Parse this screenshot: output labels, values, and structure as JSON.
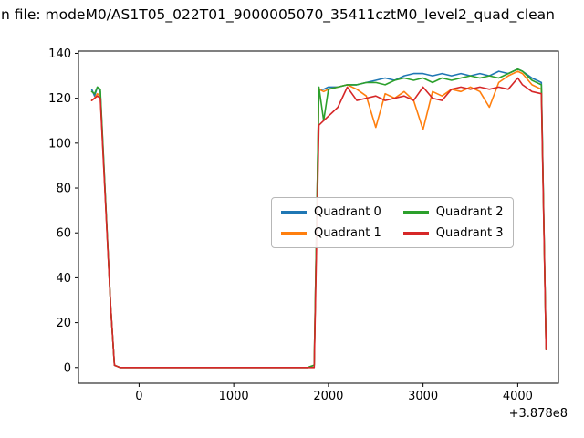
{
  "title": "n file: modeM0/AS1T05_022T01_9000005070_35411cztM0_level2_quad_clean",
  "axes": {
    "x_ticks": [
      0,
      1000,
      2000,
      3000,
      4000
    ],
    "y_ticks": [
      0,
      20,
      40,
      60,
      80,
      100,
      120,
      140
    ],
    "x_offset_text": "+3.878e8",
    "xlim": [
      -640,
      4430
    ],
    "ylim": [
      -7,
      141
    ]
  },
  "legend": {
    "items": [
      {
        "label": "Quadrant 0",
        "color": "#1f77b4"
      },
      {
        "label": "Quadrant 1",
        "color": "#ff7f0e"
      },
      {
        "label": "Quadrant 2",
        "color": "#2ca02c"
      },
      {
        "label": "Quadrant 3",
        "color": "#d62728"
      }
    ]
  },
  "chart_data": {
    "type": "line",
    "title": "n file: modeM0/AS1T05_022T01_9000005070_35411cztM0_level2_quad_clean",
    "xlabel": "",
    "ylabel": "",
    "x_offset": "+3.878e8",
    "xlim": [
      -640,
      4430
    ],
    "ylim": [
      -7,
      141
    ],
    "grid": false,
    "legend_position": "center",
    "x": [
      -500,
      -470,
      -440,
      -410,
      -300,
      -260,
      -200,
      0,
      500,
      1000,
      1500,
      1780,
      1850,
      1900,
      1950,
      2000,
      2100,
      2200,
      2300,
      2400,
      2500,
      2600,
      2700,
      2800,
      2900,
      3000,
      3100,
      3200,
      3300,
      3400,
      3500,
      3600,
      3700,
      3800,
      3900,
      4000,
      4050,
      4150,
      4250,
      4300
    ],
    "series": [
      {
        "name": "Quadrant 0",
        "color": "#1f77b4",
        "values": [
          124,
          121,
          125,
          123,
          27,
          1,
          0,
          0,
          0,
          0,
          0,
          0,
          1,
          124,
          124,
          125,
          125,
          126,
          126,
          127,
          128,
          129,
          128,
          130,
          131,
          131,
          130,
          131,
          130,
          131,
          130,
          131,
          130,
          132,
          131,
          133,
          132,
          129,
          127,
          8
        ]
      },
      {
        "name": "Quadrant 1",
        "color": "#ff7f0e",
        "values": [
          119,
          120,
          122,
          121,
          27,
          1,
          0,
          0,
          0,
          0,
          0,
          0,
          1,
          124,
          123,
          124,
          125,
          126,
          124,
          121,
          107,
          122,
          120,
          123,
          119,
          106,
          123,
          121,
          124,
          123,
          125,
          123,
          116,
          127,
          130,
          132,
          131,
          126,
          124,
          8
        ]
      },
      {
        "name": "Quadrant 2",
        "color": "#2ca02c",
        "values": [
          123,
          122,
          125,
          124,
          27,
          1,
          0,
          0,
          0,
          0,
          0,
          0,
          1,
          125,
          110,
          124,
          125,
          126,
          126,
          127,
          127,
          126,
          128,
          129,
          128,
          129,
          127,
          129,
          128,
          129,
          130,
          129,
          130,
          129,
          131,
          133,
          132,
          128,
          126,
          8
        ]
      },
      {
        "name": "Quadrant 3",
        "color": "#d62728",
        "values": [
          119,
          120,
          121,
          120,
          27,
          1,
          0,
          0,
          0,
          0,
          0,
          0,
          0,
          108,
          110,
          112,
          116,
          125,
          119,
          120,
          121,
          119,
          120,
          121,
          119,
          125,
          120,
          119,
          124,
          125,
          124,
          125,
          124,
          125,
          124,
          129,
          126,
          123,
          122,
          8
        ]
      }
    ]
  }
}
